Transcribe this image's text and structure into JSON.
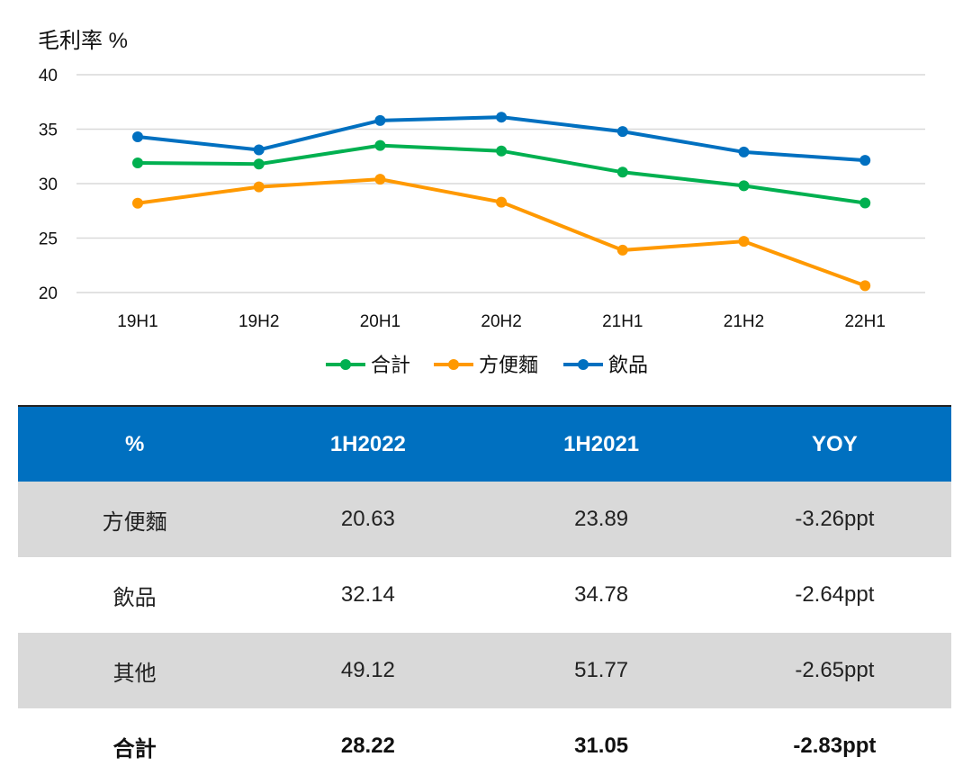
{
  "chart_data": {
    "type": "line",
    "ylabel": "毛利率 %",
    "ylim": [
      20,
      40
    ],
    "yticks": [
      20,
      25,
      30,
      35,
      40
    ],
    "categories": [
      "19H1",
      "19H2",
      "20H1",
      "20H2",
      "21H1",
      "21H2",
      "22H1"
    ],
    "grid": true,
    "legend_position": "bottom",
    "series": [
      {
        "name": "合計",
        "color": "#00b050",
        "values": [
          31.9,
          31.8,
          33.5,
          33.0,
          31.05,
          29.8,
          28.22
        ]
      },
      {
        "name": "方便麵",
        "color": "#ff9900",
        "values": [
          28.2,
          29.7,
          30.4,
          28.3,
          23.89,
          24.7,
          20.63
        ]
      },
      {
        "name": "飲品",
        "color": "#0070c0",
        "values": [
          34.3,
          33.1,
          35.8,
          36.1,
          34.78,
          32.9,
          32.14
        ]
      }
    ]
  },
  "table": {
    "headers": [
      "%",
      "1H2022",
      "1H2021",
      "YOY"
    ],
    "rows": [
      [
        "方便麵",
        "20.63",
        "23.89",
        "-3.26ppt"
      ],
      [
        "飲品",
        "32.14",
        "34.78",
        "-2.64ppt"
      ],
      [
        "其他",
        "49.12",
        "51.77",
        "-2.65ppt"
      ],
      [
        "合計",
        "28.22",
        "31.05",
        "-2.83ppt"
      ]
    ]
  }
}
